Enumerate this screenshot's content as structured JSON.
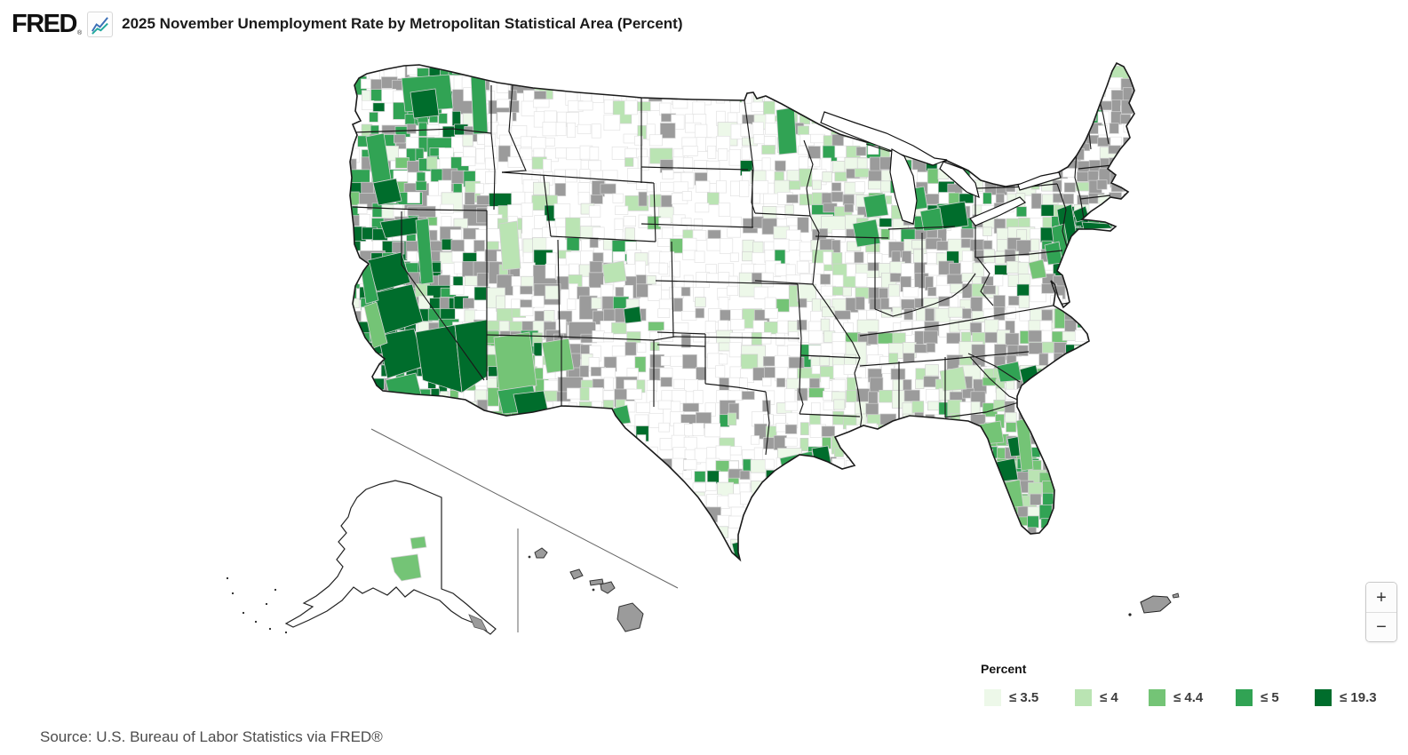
{
  "header": {
    "logo": "FRED",
    "registered_mark": "®",
    "title": "2025 November Unemployment Rate by Metropolitan Statistical Area (Percent)"
  },
  "map": {
    "background_color": "#ffffff",
    "no_data_color": "#9b9b9b",
    "county_border_color": "#d0d0d0",
    "state_border_color": "#1a1a1a"
  },
  "legend": {
    "label": "Percent",
    "bins": [
      {
        "label": "≤ 3.5",
        "color": "#edf8e9"
      },
      {
        "label": "≤ 4",
        "color": "#bae4b3"
      },
      {
        "label": "≤ 4.4",
        "color": "#74c476"
      },
      {
        "label": "≤ 5",
        "color": "#31a354"
      },
      {
        "label": "≤ 19.3",
        "color": "#006d2c"
      }
    ]
  },
  "controls": {
    "zoom_in": "+",
    "zoom_out": "−"
  },
  "source": "Source: U.S. Bureau of Labor Statistics via FRED®",
  "chart_data": {
    "type": "choropleth-map",
    "title": "2025 November Unemployment Rate by Metropolitan Statistical Area (Percent)",
    "unit": "Percent",
    "bins": [
      "≤ 3.5",
      "≤ 4",
      "≤ 4.4",
      "≤ 5",
      "≤ 19.3"
    ],
    "bin_colors": [
      "#edf8e9",
      "#bae4b3",
      "#74c476",
      "#31a354",
      "#006d2c"
    ],
    "max_value": 19.3
  }
}
